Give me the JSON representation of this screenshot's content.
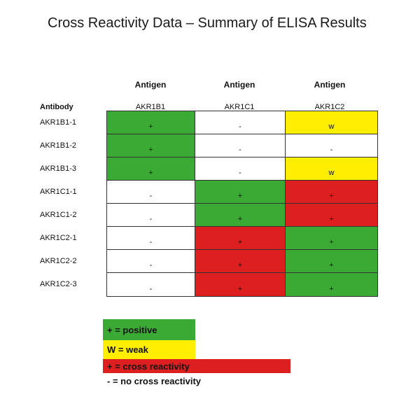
{
  "title": "Cross Reactivity Data – Summary of ELISA Results",
  "colors": {
    "positive": "#3aaa35",
    "weak": "#ffee00",
    "cross": "#dd1f1f",
    "none": "#ffffff"
  },
  "table": {
    "antigen_header": "Antigen",
    "antibody_header": "Antibody",
    "columns": [
      "AKR1B1",
      "AKR1C1",
      "AKR1C2"
    ],
    "rows": [
      {
        "label": "AKR1B1-1",
        "cells": [
          {
            "v": "+",
            "s": "positive"
          },
          {
            "v": "-",
            "s": "none"
          },
          {
            "v": "w",
            "s": "weak"
          }
        ]
      },
      {
        "label": "AKR1B1-2",
        "cells": [
          {
            "v": "+",
            "s": "positive"
          },
          {
            "v": "-",
            "s": "none"
          },
          {
            "v": "-",
            "s": "none"
          }
        ]
      },
      {
        "label": "AKR1B1-3",
        "cells": [
          {
            "v": "+",
            "s": "positive"
          },
          {
            "v": "-",
            "s": "none"
          },
          {
            "v": "w",
            "s": "weak"
          }
        ]
      },
      {
        "label": "AKR1C1-1",
        "cells": [
          {
            "v": "-",
            "s": "none"
          },
          {
            "v": "+",
            "s": "positive"
          },
          {
            "v": "+",
            "s": "cross"
          }
        ]
      },
      {
        "label": "AKR1C1-2",
        "cells": [
          {
            "v": "-",
            "s": "none"
          },
          {
            "v": "+",
            "s": "positive"
          },
          {
            "v": "+",
            "s": "cross"
          }
        ]
      },
      {
        "label": "AKR1C2-1",
        "cells": [
          {
            "v": "-",
            "s": "none"
          },
          {
            "v": "+",
            "s": "cross"
          },
          {
            "v": "+",
            "s": "positive"
          }
        ]
      },
      {
        "label": "AKR1C2-2",
        "cells": [
          {
            "v": "-",
            "s": "none"
          },
          {
            "v": "+",
            "s": "cross"
          },
          {
            "v": "+",
            "s": "positive"
          }
        ]
      },
      {
        "label": "AKR1C2-3",
        "cells": [
          {
            "v": "-",
            "s": "none"
          },
          {
            "v": "+",
            "s": "cross"
          },
          {
            "v": "+",
            "s": "positive"
          }
        ]
      }
    ]
  },
  "legend": {
    "positive": "+ = positive",
    "weak": "W = weak",
    "cross": "+ = cross reactivity",
    "none": "- = no cross reactivity"
  }
}
